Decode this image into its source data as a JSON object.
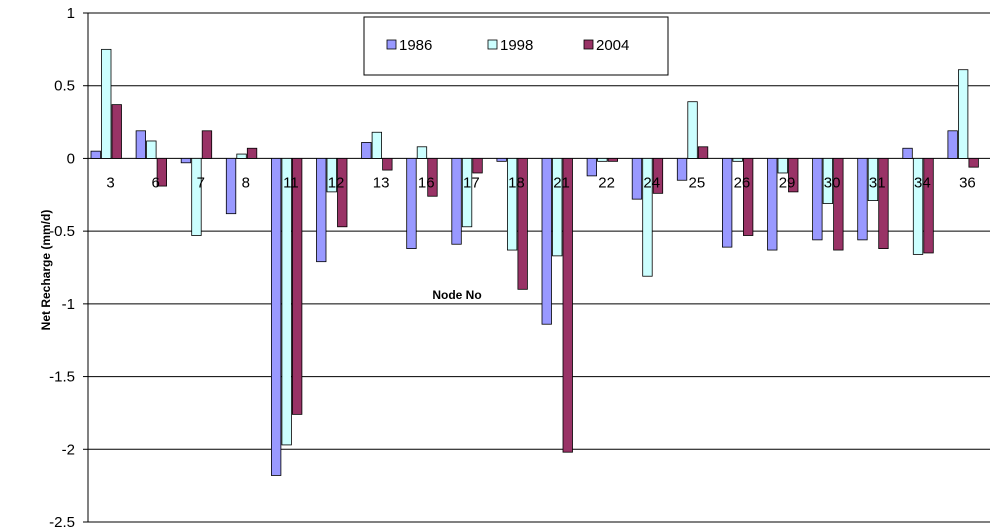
{
  "chart_data": {
    "type": "bar",
    "title": "",
    "xlabel": "Node No",
    "ylabel": "Net Recharge (mm/d)",
    "ylim": [
      -2.5,
      1
    ],
    "yticks": [
      "1",
      "0.5",
      "0",
      "-0.5",
      "-1",
      "-1.5",
      "-2",
      "-2.5"
    ],
    "ytick_values": [
      1,
      0.5,
      0,
      -0.5,
      -1,
      -1.5,
      -2,
      -2.5
    ],
    "grid": true,
    "legend_position": "top-center",
    "categories": [
      "3",
      "6",
      "7",
      "8",
      "11",
      "12",
      "13",
      "16",
      "17",
      "18",
      "21",
      "22",
      "24",
      "25",
      "26",
      "29",
      "30",
      "31",
      "34",
      "36"
    ],
    "series": [
      {
        "name": "1986",
        "color": "#9999ff",
        "values": [
          0.05,
          0.19,
          -0.03,
          -0.38,
          -2.18,
          -0.71,
          0.11,
          -0.62,
          -0.59,
          -0.02,
          -1.14,
          -0.12,
          -0.28,
          -0.15,
          -0.61,
          -0.63,
          -0.56,
          -0.56,
          0.07,
          0.19
        ]
      },
      {
        "name": "1998",
        "color": "#ccffff",
        "values": [
          0.75,
          0.12,
          -0.53,
          0.03,
          -1.97,
          -0.23,
          0.18,
          0.08,
          -0.47,
          -0.63,
          -0.67,
          -0.02,
          -0.81,
          0.39,
          -0.02,
          -0.1,
          -0.31,
          -0.29,
          -0.66,
          0.61
        ]
      },
      {
        "name": "2004",
        "color": "#993366",
        "values": [
          0.37,
          -0.19,
          0.19,
          0.07,
          -1.76,
          -0.47,
          -0.08,
          -0.26,
          -0.1,
          -0.9,
          -2.02,
          -0.02,
          -0.24,
          0.08,
          -0.53,
          -0.23,
          -0.63,
          -0.62,
          -0.65,
          -0.06
        ]
      }
    ]
  }
}
